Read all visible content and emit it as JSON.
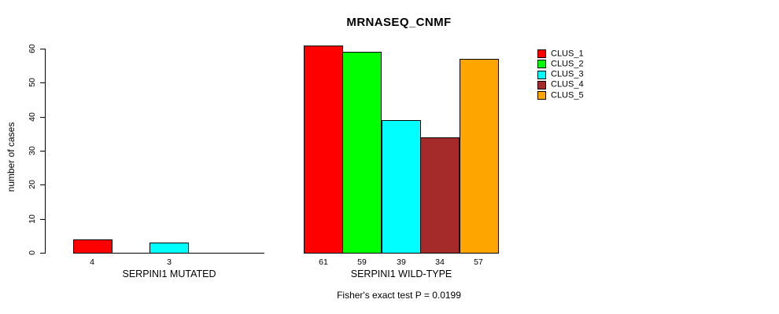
{
  "chart_data": {
    "type": "bar",
    "title": "MRNASEQ_CNMF",
    "ylabel": "number of cases",
    "xlabel": "",
    "ylim": [
      0,
      60
    ],
    "yticks": [
      0,
      10,
      20,
      30,
      40,
      50,
      60
    ],
    "grid": false,
    "legend_position": "right-outside",
    "series": [
      {
        "name": "CLUS_1",
        "color": "#FF0000"
      },
      {
        "name": "CLUS_2",
        "color": "#00FF00"
      },
      {
        "name": "CLUS_3",
        "color": "#00FFFF"
      },
      {
        "name": "CLUS_4",
        "color": "#A52A2A"
      },
      {
        "name": "CLUS_5",
        "color": "#FFA500"
      }
    ],
    "groups": [
      {
        "label": "SERPINI1 MUTATED",
        "values": [
          4,
          0,
          3,
          0,
          0
        ]
      },
      {
        "label": "SERPINI1 WILD-TYPE",
        "values": [
          61,
          59,
          39,
          34,
          57
        ]
      }
    ],
    "footnote": "Fisher's exact test P = 0.0199"
  }
}
